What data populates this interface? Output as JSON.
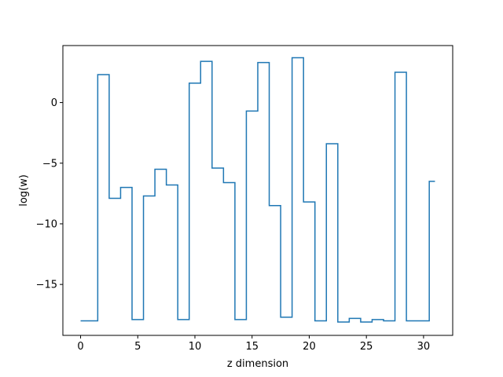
{
  "chart_data": {
    "type": "line",
    "step": "mid",
    "title": "",
    "xlabel": "z dimension",
    "ylabel": "log(w)",
    "xlim": [
      -1.55,
      32.55
    ],
    "ylim": [
      -19.2,
      4.7
    ],
    "xticks": [
      0,
      5,
      10,
      15,
      20,
      25,
      30
    ],
    "yticks": [
      -15,
      -10,
      -5,
      0
    ],
    "ytick_labels": [
      "−15",
      "−10",
      "−5",
      "0"
    ],
    "grid": false,
    "series": [
      {
        "color": "#1f77b4",
        "x": [
          0,
          1,
          2,
          3,
          4,
          5,
          6,
          7,
          8,
          9,
          10,
          11,
          12,
          13,
          14,
          15,
          16,
          17,
          18,
          19,
          20,
          21,
          22,
          23,
          24,
          25,
          26,
          27,
          28,
          29,
          30,
          31
        ],
        "values": [
          -18.0,
          -18.0,
          2.3,
          -7.9,
          -7.0,
          -17.9,
          -7.7,
          -5.5,
          -6.8,
          -17.9,
          1.6,
          3.4,
          -5.4,
          -6.6,
          -17.9,
          -0.7,
          3.3,
          -8.5,
          -17.7,
          3.7,
          -8.2,
          -18.0,
          -3.4,
          -18.1,
          -17.8,
          -18.1,
          -17.9,
          -18.0,
          2.5,
          -18.0,
          -18.0,
          -6.5
        ]
      }
    ]
  }
}
